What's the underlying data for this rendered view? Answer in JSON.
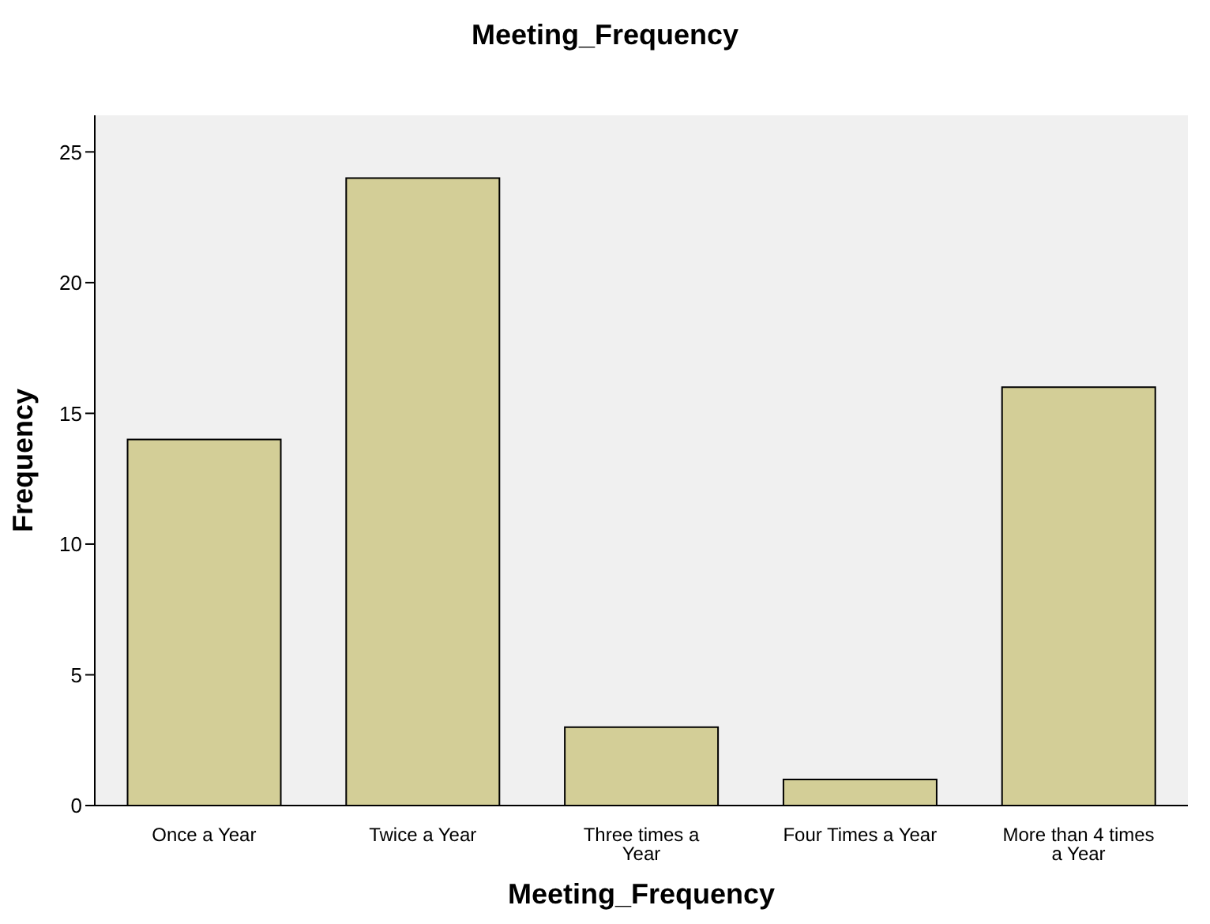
{
  "chart_data": {
    "type": "bar",
    "title": "Meeting_Frequency",
    "xlabel": "Meeting_Frequency",
    "ylabel": "Frequency",
    "categories": [
      "Once a Year",
      "Twice a Year",
      "Three times a Year",
      "Four Times a Year",
      "More than 4 times a Year"
    ],
    "values": [
      14,
      24,
      3,
      1,
      16
    ],
    "color": "#d3ce97",
    "ylim": [
      0,
      26.4
    ],
    "yticks": [
      0,
      5,
      10,
      15,
      20,
      25
    ],
    "grid": false,
    "legend": false
  }
}
